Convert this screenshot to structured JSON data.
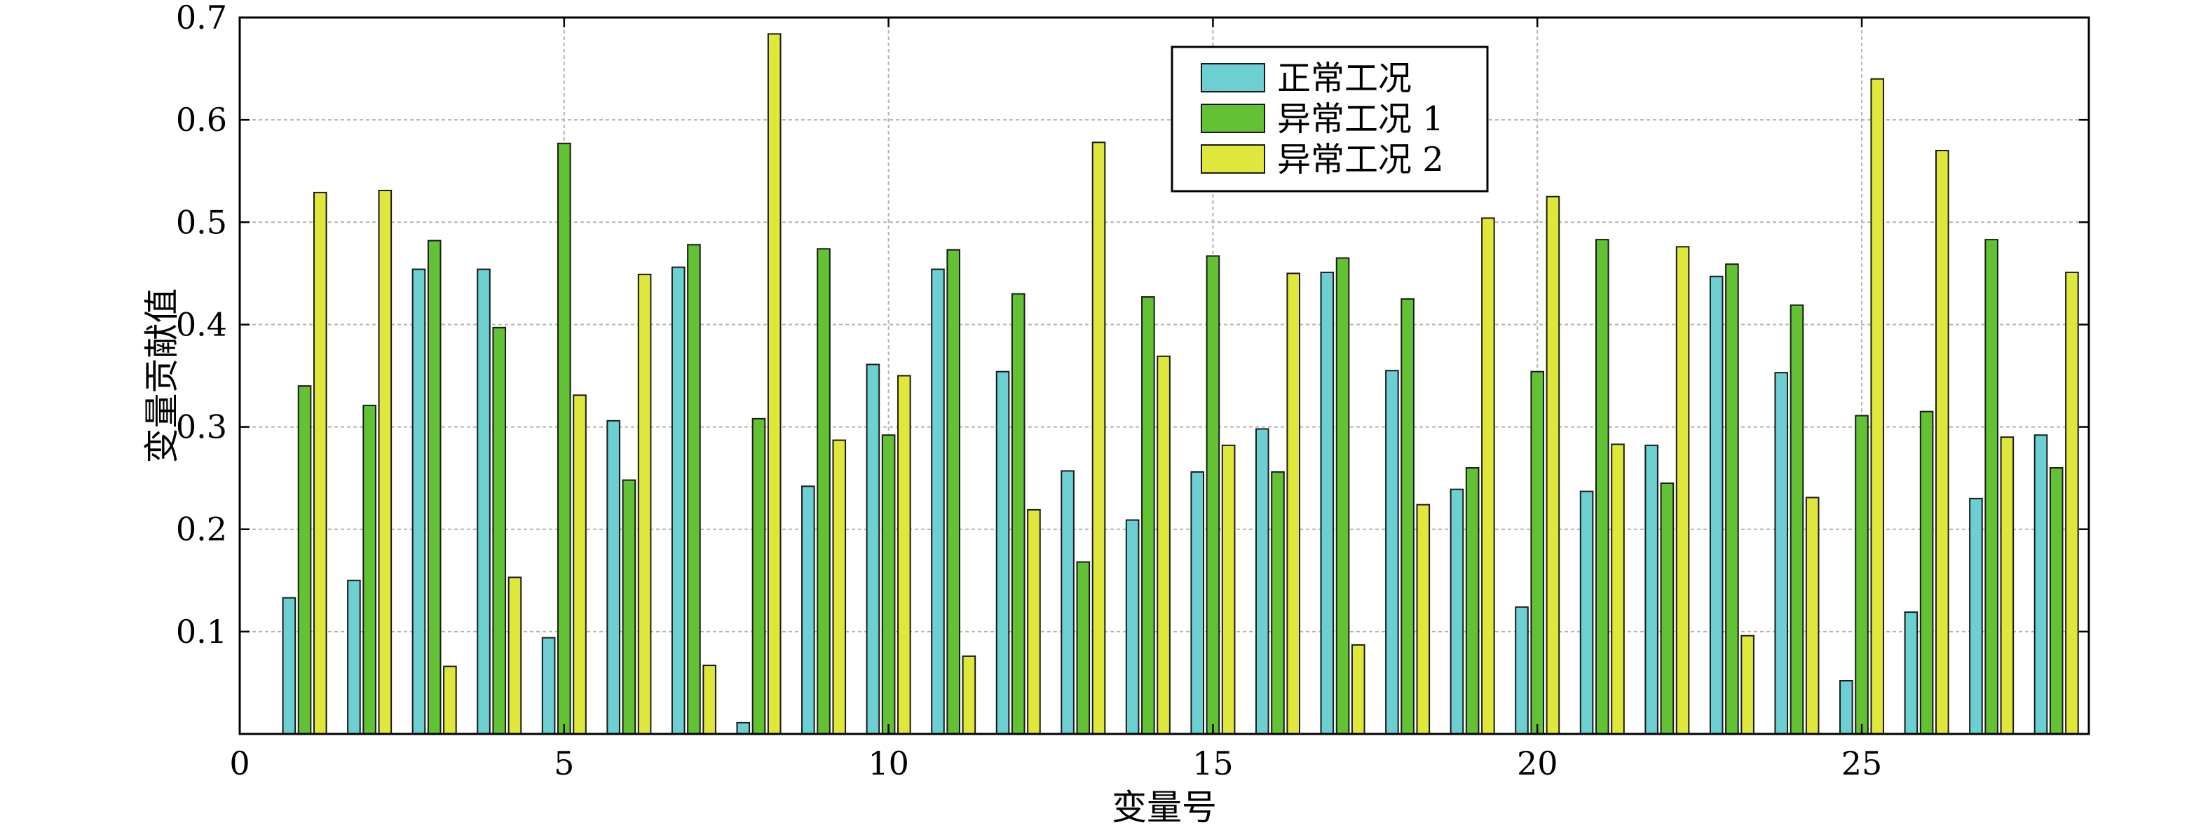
{
  "chart_data": {
    "type": "bar",
    "title": "",
    "xlabel": "变量号",
    "ylabel": "变量贡献值",
    "xlim": [
      0,
      28.5
    ],
    "ylim": [
      0,
      0.7
    ],
    "x_ticks": [
      "0",
      "5",
      "10",
      "15",
      "20",
      "25"
    ],
    "y_ticks": [
      "0.1",
      "0.2",
      "0.3",
      "0.4",
      "0.5",
      "0.6",
      "0.7"
    ],
    "grid": true,
    "legend_position": "top-center",
    "categories": [
      1,
      2,
      3,
      4,
      5,
      6,
      7,
      8,
      9,
      10,
      11,
      12,
      13,
      14,
      15,
      16,
      17,
      18,
      19,
      20,
      21,
      22,
      23,
      24,
      25,
      26,
      27,
      28
    ],
    "series": [
      {
        "name": "正常工况",
        "color": "#6ccfd2",
        "values": [
          0.133,
          0.15,
          0.454,
          0.454,
          0.094,
          0.306,
          0.456,
          0.011,
          0.242,
          0.361,
          0.454,
          0.354,
          0.257,
          0.209,
          0.256,
          0.298,
          0.451,
          0.355,
          0.239,
          0.124,
          0.237,
          0.282,
          0.447,
          0.353,
          0.052,
          0.119,
          0.23,
          0.292
        ]
      },
      {
        "name": "异常工况 1",
        "color": "#62c233",
        "values": [
          0.34,
          0.321,
          0.482,
          0.397,
          0.577,
          0.248,
          0.478,
          0.308,
          0.474,
          0.292,
          0.473,
          0.43,
          0.168,
          0.427,
          0.467,
          0.256,
          0.465,
          0.425,
          0.26,
          0.354,
          0.483,
          0.245,
          0.459,
          0.419,
          0.311,
          0.315,
          0.483,
          0.26
        ]
      },
      {
        "name": "异常工况 2",
        "color": "#dfe83a",
        "values": [
          0.529,
          0.531,
          0.066,
          0.153,
          0.331,
          0.449,
          0.067,
          0.684,
          0.287,
          0.35,
          0.076,
          0.219,
          0.578,
          0.369,
          0.282,
          0.45,
          0.087,
          0.224,
          0.504,
          0.525,
          0.283,
          0.476,
          0.096,
          0.231,
          0.64,
          0.57,
          0.29,
          0.451
        ]
      }
    ]
  }
}
